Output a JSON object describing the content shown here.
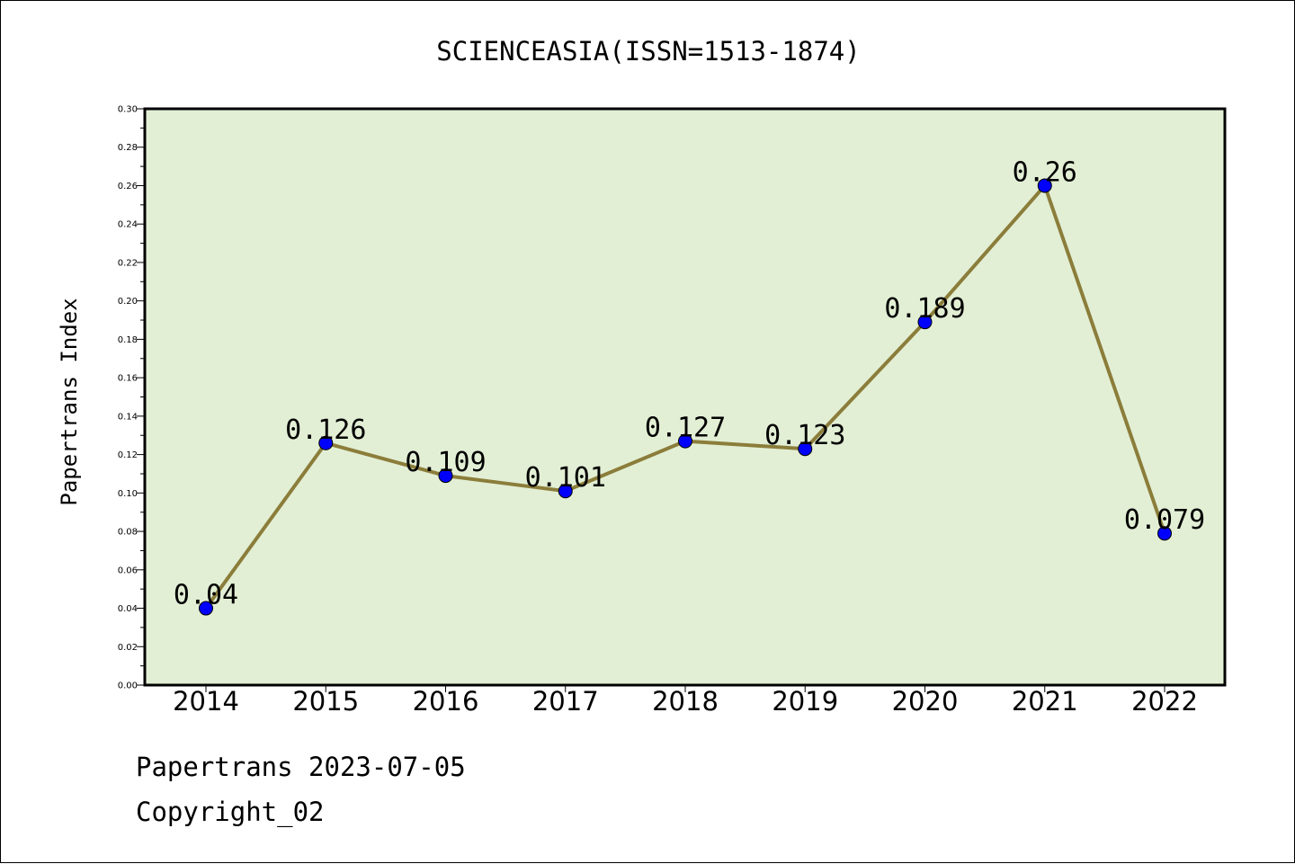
{
  "chart_data": {
    "type": "line",
    "title": "SCIENCEASIA(ISSN=1513-1874)",
    "xlabel": "",
    "ylabel": "Papertrans Index",
    "categories": [
      "2014",
      "2015",
      "2016",
      "2017",
      "2018",
      "2019",
      "2020",
      "2021",
      "2022"
    ],
    "series": [
      {
        "values": [
          0.04,
          0.126,
          0.109,
          0.101,
          0.127,
          0.123,
          0.189,
          0.26,
          0.079
        ],
        "labels": [
          "0.04",
          "0.126",
          "0.109",
          "0.101",
          "0.127",
          "0.123",
          "0.189",
          "0.26",
          "0.079"
        ]
      }
    ],
    "ylim": [
      0,
      0.3
    ],
    "yticks": [
      "0.00",
      "0.02",
      "0.04",
      "0.06",
      "0.08",
      "0.10",
      "0.12",
      "0.14",
      "0.16",
      "0.18",
      "0.20",
      "0.22",
      "0.24",
      "0.26",
      "0.28",
      "0.30"
    ],
    "grid": false,
    "legend": "none",
    "colors": {
      "plot_background": "#e2efd5",
      "line": "#8b7d3a",
      "marker": "#0000ff",
      "axis": "#000000"
    }
  },
  "footer": {
    "line1": "Papertrans 2023-07-05",
    "line2": "Copyright_02"
  }
}
